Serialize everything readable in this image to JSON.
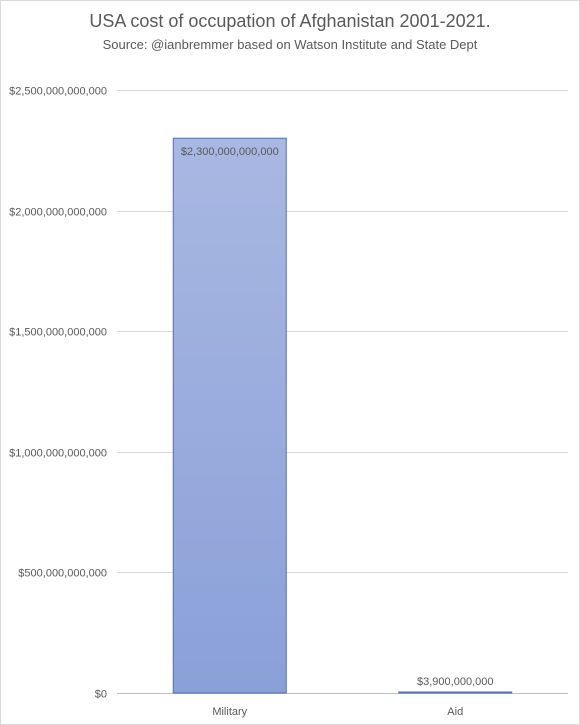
{
  "chart_data": {
    "type": "bar",
    "title": "USA cost of occupation of Afghanistan 2001-2021.",
    "subtitle": "Source: @ianbremmer based on Watson Institute and State Dept",
    "categories": [
      "Military",
      "Aid"
    ],
    "values": [
      2300000000000,
      3900000000
    ],
    "data_labels": [
      "$2,300,000,000,000",
      "$3,900,000,000"
    ],
    "xlabel": "",
    "ylabel": "",
    "ylim": [
      0,
      2500000000000
    ],
    "y_ticks": [
      0,
      500000000000,
      1000000000000,
      1500000000000,
      2000000000000,
      2500000000000
    ],
    "y_tick_labels": [
      "$0",
      "$500,000,000,000",
      "$1,000,000,000,000",
      "$1,500,000,000,000",
      "$2,000,000,000,000",
      "$2,500,000,000,000"
    ],
    "grid": true,
    "legend": "none",
    "colors": {
      "bar_top": "#a9b8e2",
      "bar_bottom": "#8aa0d8",
      "bar_stroke": "#4f6fbf",
      "text": "#595959",
      "grid": "#d9d9d9"
    }
  }
}
